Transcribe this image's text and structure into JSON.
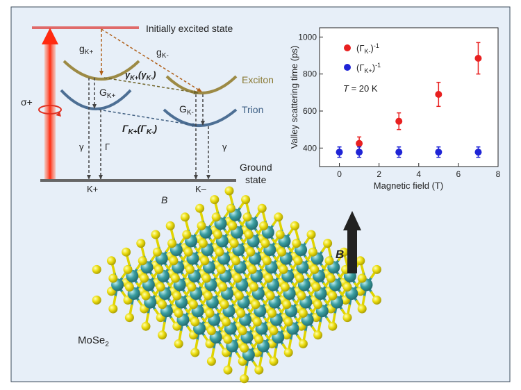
{
  "energy_diagram": {
    "excited_label": "Initially excited state",
    "ground_label_line1": "Ground",
    "ground_label_line2": "state",
    "exciton_label": "Exciton",
    "trion_label": "Trion",
    "sigma_label": "σ+",
    "g_k_plus": {
      "main": "g",
      "sub": "K+"
    },
    "g_k_minus": {
      "main": "g",
      "sub": "K-"
    },
    "G_k_plus": {
      "main": "G",
      "sub": "K+"
    },
    "G_k_minus": {
      "main": "G",
      "sub": "K-"
    },
    "gamma_exc": {
      "main": "γ",
      "sub1": "K+",
      "mid": "(γ",
      "sub2": "K-",
      "end": ")"
    },
    "Gamma_trion": {
      "main": "Γ",
      "sub1": "K+",
      "mid": "(Γ",
      "sub2": "K-",
      "end": ")"
    },
    "gamma_left": "γ",
    "Gamma_left": "Γ",
    "gamma_right": "γ",
    "valley_k_plus": "K+",
    "valley_k_minus": "K–",
    "field_label": "B",
    "colors": {
      "excited": "#e06a6a",
      "exciton": "#9c8a45",
      "trion": "#4d6f94",
      "pump": "#ff2a10",
      "ground": "#666666"
    }
  },
  "lattice": {
    "material_label": "MoSe",
    "material_sub": "2",
    "field_arrow_label": "B",
    "colors": {
      "mo": "#2f8f92",
      "se": "#e0d400"
    }
  },
  "chart_data": {
    "type": "scatter",
    "xlabel": "Magnetic field (T)",
    "ylabel": "Valley scattering time (ps)",
    "xlim": [
      -1,
      8
    ],
    "ylim": [
      300,
      1050
    ],
    "xticks": [
      0,
      2,
      4,
      6,
      8
    ],
    "yticks": [
      400,
      600,
      800,
      1000
    ],
    "annotation": {
      "italic": "T",
      "rest": " = 20 K"
    },
    "legend_position": "top-left",
    "series": [
      {
        "name": {
          "pre": "(Γ",
          "sub": "K-",
          "post": ")",
          "sup": "-1"
        },
        "color": "#e82020",
        "points": [
          {
            "x": 1,
            "y": 425,
            "err": 35
          },
          {
            "x": 3,
            "y": 545,
            "err": 45
          },
          {
            "x": 5,
            "y": 690,
            "err": 65
          },
          {
            "x": 7,
            "y": 885,
            "err": 85
          }
        ]
      },
      {
        "name": {
          "pre": "(Γ",
          "sub": "K+",
          "post": ")",
          "sup": "-1"
        },
        "color": "#1f24d6",
        "points": [
          {
            "x": 0,
            "y": 378,
            "err": 28
          },
          {
            "x": 1,
            "y": 378,
            "err": 28
          },
          {
            "x": 3,
            "y": 378,
            "err": 28
          },
          {
            "x": 5,
            "y": 378,
            "err": 28
          },
          {
            "x": 7,
            "y": 378,
            "err": 28
          }
        ]
      }
    ]
  }
}
